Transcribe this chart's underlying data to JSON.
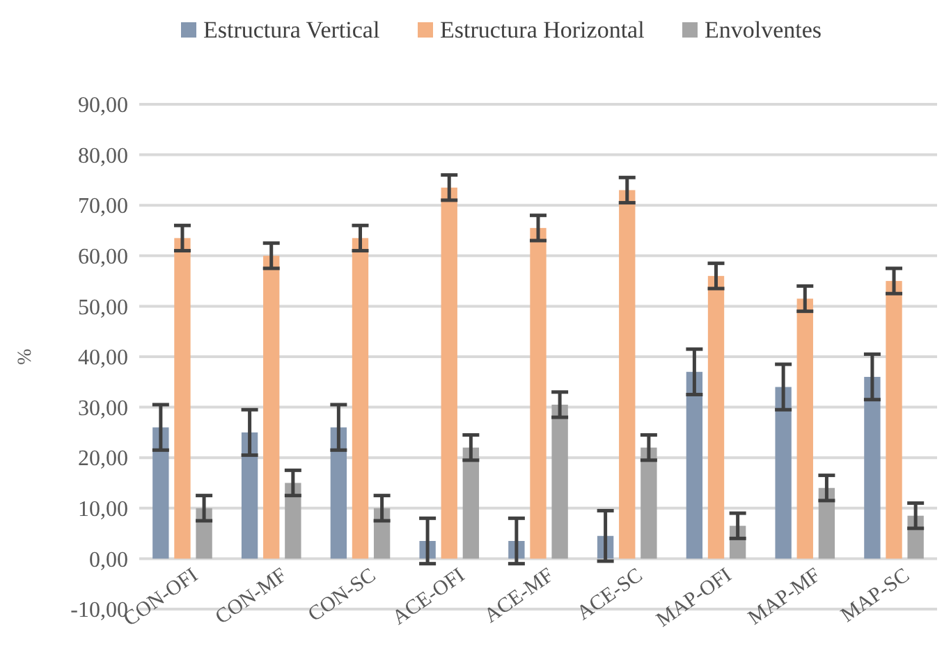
{
  "chart_data": {
    "type": "bar",
    "ylabel": "%",
    "categories": [
      "CON-OFI",
      "CON-MF",
      "CON-SC",
      "ACE-OFI",
      "ACE-MF",
      "ACE-SC",
      "MAP-OFI",
      "MAP-MF",
      "MAP-SC"
    ],
    "series": [
      {
        "name": "Estructura Vertical",
        "color": "#8497b0",
        "values": [
          26,
          25,
          26,
          3.5,
          3.5,
          4.5,
          37,
          34,
          36
        ],
        "errors": [
          4.5,
          4.5,
          4.5,
          4.5,
          4.5,
          5,
          4.5,
          4.5,
          4.5
        ]
      },
      {
        "name": "Estructura Horizontal",
        "color": "#f4b183",
        "values": [
          63.5,
          60,
          63.5,
          73.5,
          65.5,
          73,
          56,
          51.5,
          55
        ],
        "errors": [
          2.5,
          2.5,
          2.5,
          2.5,
          2.5,
          2.5,
          2.5,
          2.5,
          2.5
        ]
      },
      {
        "name": "Envolventes",
        "color": "#a5a5a5",
        "values": [
          10,
          15,
          10,
          22,
          30.5,
          22,
          6.5,
          14,
          8.5
        ],
        "errors": [
          2.5,
          2.5,
          2.5,
          2.5,
          2.5,
          2.5,
          2.5,
          2.5,
          2.5
        ]
      }
    ],
    "ylim": [
      -10,
      90
    ],
    "yticks": [
      {
        "value": -10,
        "label": "-10,00"
      },
      {
        "value": 0,
        "label": "0,00"
      },
      {
        "value": 10,
        "label": "10,00"
      },
      {
        "value": 20,
        "label": "20,00"
      },
      {
        "value": 30,
        "label": "30,00"
      },
      {
        "value": 40,
        "label": "40,00"
      },
      {
        "value": 50,
        "label": "50,00"
      },
      {
        "value": 60,
        "label": "60,00"
      },
      {
        "value": 70,
        "label": "70,00"
      },
      {
        "value": 80,
        "label": "80,00"
      },
      {
        "value": 90,
        "label": "90,00"
      }
    ],
    "grid": "y",
    "legend": "top"
  }
}
